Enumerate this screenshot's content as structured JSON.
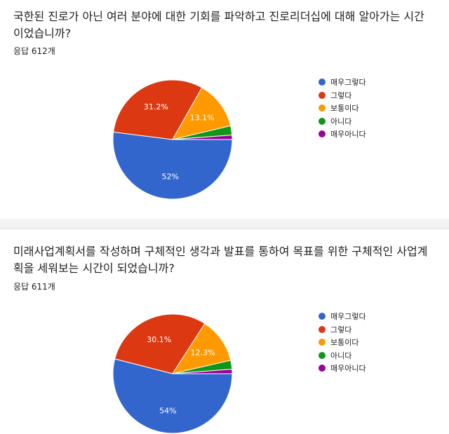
{
  "legend_labels": [
    "매우그렇다",
    "그렇다",
    "보통이다",
    "아니다",
    "매우아니다"
  ],
  "colors": [
    "#3366cc",
    "#dc3912",
    "#ff9900",
    "#109618",
    "#990099"
  ],
  "questions": [
    {
      "text": "국한된 진로가 아닌 여러 분야에 대한 기회를 파악하고 진로리더십에 대해 알아가는 시간이었습니까?",
      "responses": "응답 612개"
    },
    {
      "text": "미래사업계획서를 작성하며 구체적인 생각과 발표를 통하여 목표를 위한 구체적인 사업계획을 세워보는 시간이 되었습니까?",
      "responses": "응답 611개"
    }
  ],
  "chart_data": [
    {
      "type": "pie",
      "categories": [
        "매우그렇다",
        "그렇다",
        "보통이다",
        "아니다",
        "매우아니다"
      ],
      "values": [
        52,
        31.2,
        13.1,
        2.5,
        1.2
      ],
      "data_labels": [
        "52%",
        "31.2%",
        "13.1%",
        "",
        ""
      ],
      "legend": "right"
    },
    {
      "type": "pie",
      "categories": [
        "매우그렇다",
        "그렇다",
        "보통이다",
        "아니다",
        "매우아니다"
      ],
      "values": [
        54,
        30.1,
        12.3,
        2.4,
        1.2
      ],
      "data_labels": [
        "54%",
        "30.1%",
        "12.3%",
        "",
        ""
      ],
      "legend": "right"
    }
  ]
}
